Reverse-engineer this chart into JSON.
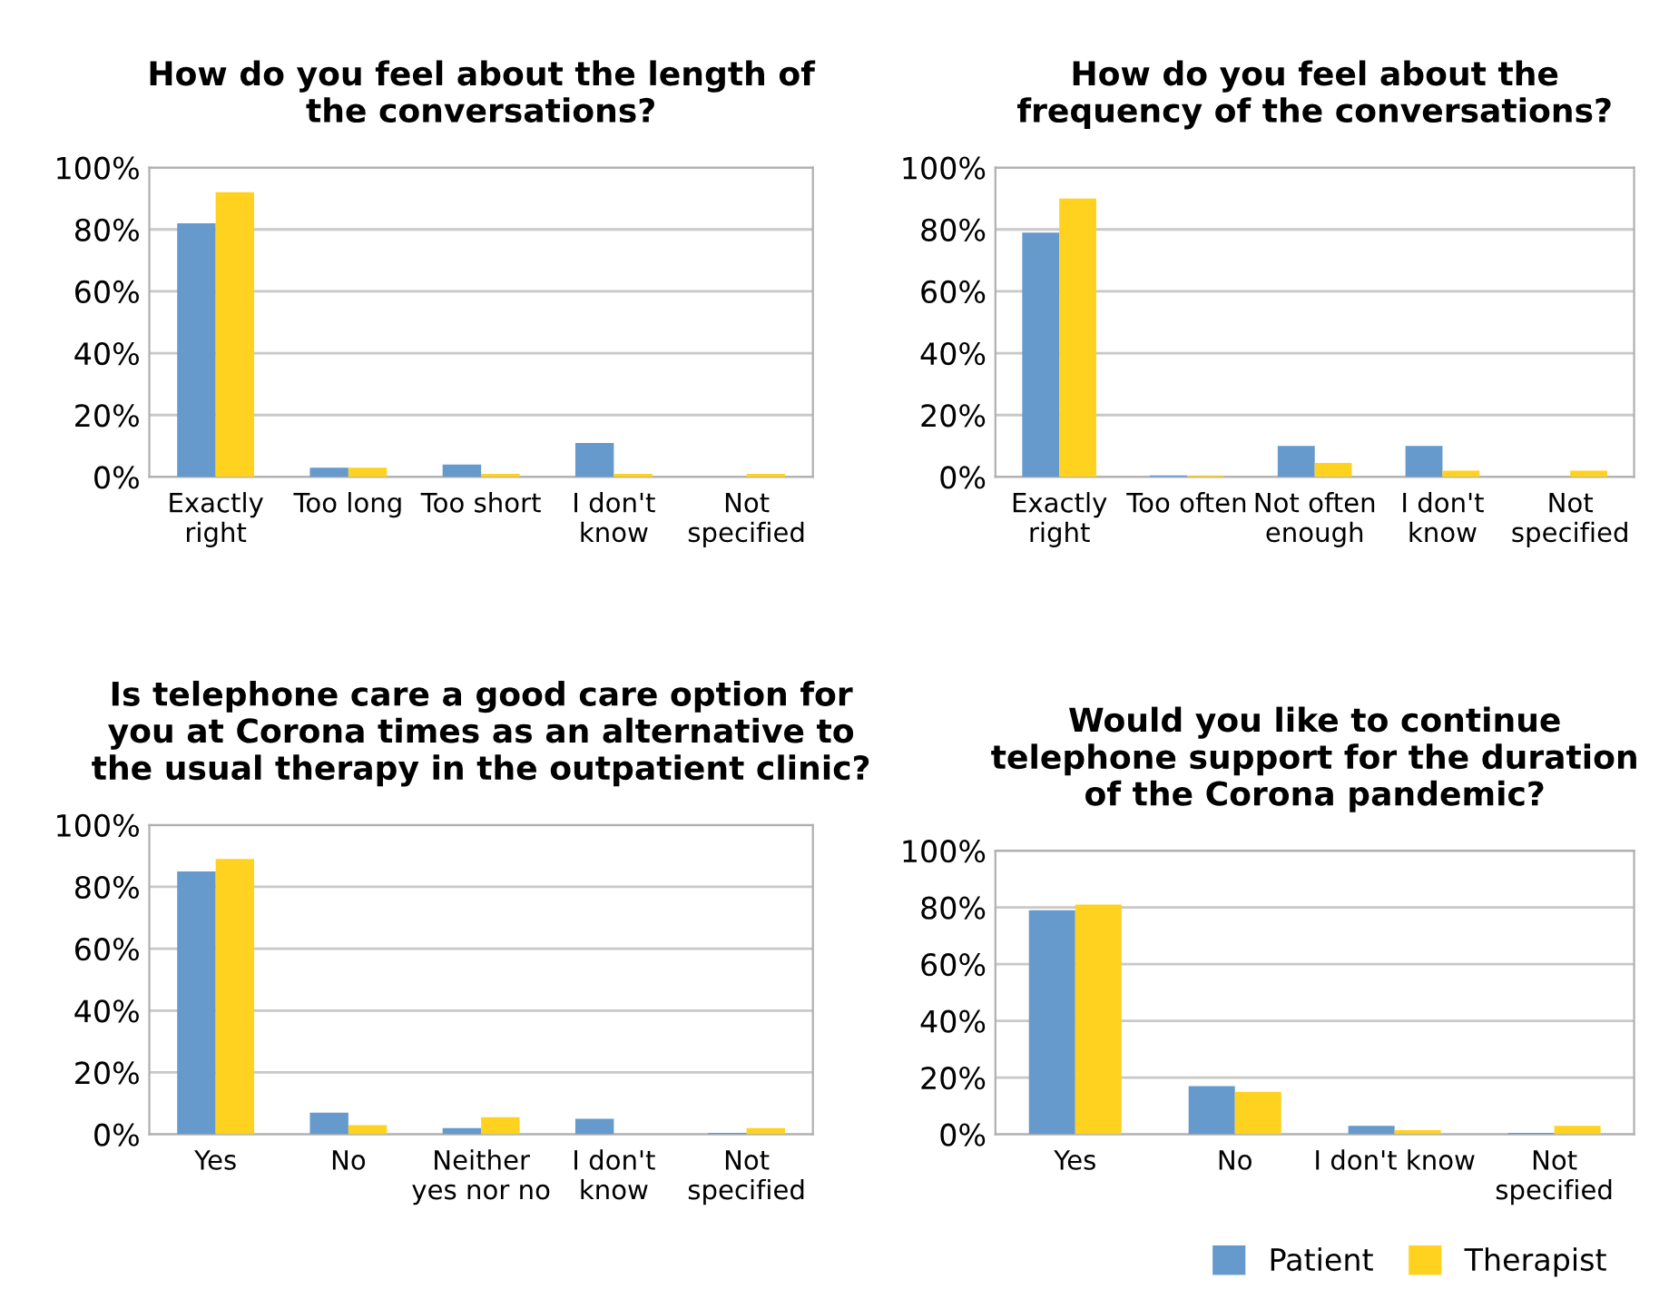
{
  "chart_data": [
    {
      "type": "bar",
      "title": "How do you feel about the length of\nthe conversations?",
      "categories": [
        "Exactly\nright",
        "Too long",
        "Too short",
        "I don't\nknow",
        "Not\nspecified"
      ],
      "series": [
        {
          "color": "#6699cc",
          "values": [
            82,
            3,
            4,
            11,
            0
          ]
        },
        {
          "color": "#ffd21f",
          "values": [
            92,
            3,
            1,
            1,
            1
          ]
        }
      ],
      "ylim": [
        0,
        100
      ],
      "yticks": [
        {
          "value": 0,
          "label": "0%"
        },
        {
          "value": 20,
          "label": "20%"
        },
        {
          "value": 40,
          "label": "40%"
        },
        {
          "value": 60,
          "label": "60%"
        },
        {
          "value": 80,
          "label": "80%"
        },
        {
          "value": 100,
          "label": "100%"
        }
      ],
      "grid": "y",
      "legend": false
    },
    {
      "type": "bar",
      "title": "How do you feel about the\nfrequency of the conversations?",
      "categories": [
        "Exactly\nright",
        "Too often",
        "Not often\nenough",
        "I don't\nknow",
        "Not\nspecified"
      ],
      "series": [
        {
          "color": "#6699cc",
          "values": [
            79,
            0.5,
            10,
            10,
            0
          ]
        },
        {
          "color": "#ffd21f",
          "values": [
            90,
            0.5,
            4.5,
            2,
            2
          ]
        }
      ],
      "ylim": [
        0,
        100
      ],
      "yticks": [
        {
          "value": 0,
          "label": "0%"
        },
        {
          "value": 20,
          "label": "20%"
        },
        {
          "value": 40,
          "label": "40%"
        },
        {
          "value": 60,
          "label": "60%"
        },
        {
          "value": 80,
          "label": "80%"
        },
        {
          "value": 100,
          "label": "100%"
        }
      ],
      "grid": "y",
      "legend": false
    },
    {
      "type": "bar",
      "title": "Is telephone care a good care option for\nyou at Corona times as an alternative to\nthe usual therapy in the outpatient clinic?",
      "categories": [
        "Yes",
        "No",
        "Neither\nyes nor no",
        "I don't\nknow",
        "Not\nspecified"
      ],
      "series": [
        {
          "color": "#6699cc",
          "values": [
            85,
            7,
            2,
            5,
            0.5
          ]
        },
        {
          "color": "#ffd21f",
          "values": [
            89,
            3,
            5.5,
            0,
            2
          ]
        }
      ],
      "ylim": [
        0,
        100
      ],
      "yticks": [
        {
          "value": 0,
          "label": "0%"
        },
        {
          "value": 20,
          "label": "20%"
        },
        {
          "value": 40,
          "label": "40%"
        },
        {
          "value": 60,
          "label": "60%"
        },
        {
          "value": 80,
          "label": "80%"
        },
        {
          "value": 100,
          "label": "100%"
        }
      ],
      "grid": "y",
      "legend": false
    },
    {
      "type": "bar",
      "title": "Would you like to continue\ntelephone support for the duration\nof the Corona pandemic?",
      "categories": [
        "Yes",
        "No",
        "I don't know",
        "Not\nspecified"
      ],
      "series": [
        {
          "name": "Patient",
          "color": "#6699cc",
          "values": [
            79,
            17,
            3,
            0.5
          ]
        },
        {
          "name": "Therapist",
          "color": "#ffd21f",
          "values": [
            81,
            15,
            1.5,
            3
          ]
        }
      ],
      "ylim": [
        0,
        100
      ],
      "yticks": [
        {
          "value": 0,
          "label": "0%"
        },
        {
          "value": 20,
          "label": "20%"
        },
        {
          "value": 40,
          "label": "40%"
        },
        {
          "value": 60,
          "label": "60%"
        },
        {
          "value": 80,
          "label": "80%"
        },
        {
          "value": 100,
          "label": "100%"
        }
      ],
      "grid": "y",
      "legend": "bottom right"
    }
  ]
}
